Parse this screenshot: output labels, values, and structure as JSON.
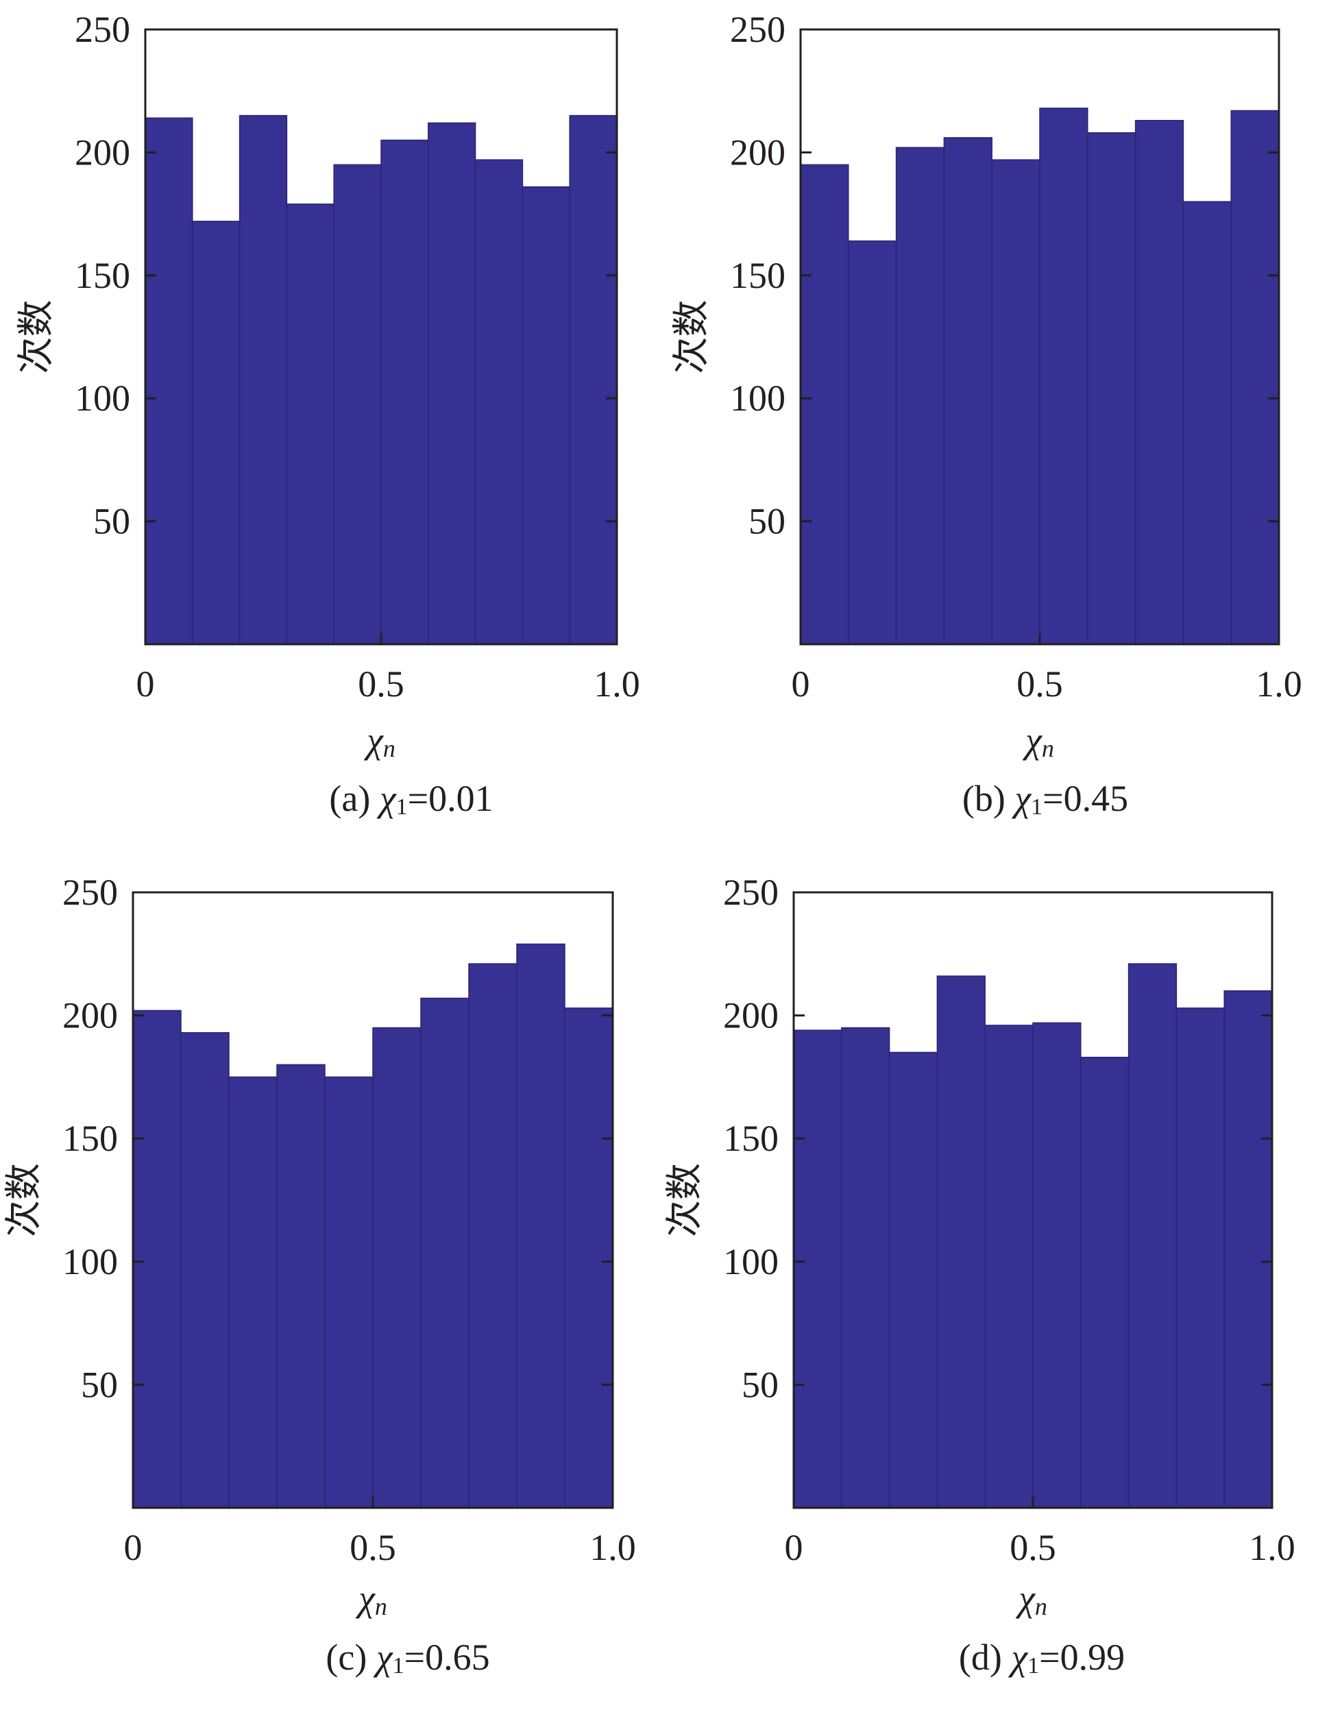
{
  "chart_data": [
    {
      "type": "bar",
      "panel": "a",
      "caption": {
        "prefix": "(a) ",
        "symbol": "χ",
        "subscript": "1",
        "suffix": "=0.01"
      },
      "ylabel": "次数",
      "xlabel": {
        "symbol": "χ",
        "subscript": "n"
      },
      "bin_edges": [
        0,
        0.1,
        0.2,
        0.3,
        0.4,
        0.5,
        0.6,
        0.7,
        0.8,
        0.9,
        1.0
      ],
      "values": [
        214,
        172,
        215,
        179,
        195,
        205,
        212,
        197,
        186,
        215
      ],
      "xlim": [
        0,
        1.0
      ],
      "ylim": [
        0,
        250
      ],
      "yticks": [
        50,
        100,
        150,
        200,
        250
      ],
      "xticks": [
        0,
        0.5,
        1.0
      ],
      "xtick_labels": [
        "0",
        "0.5",
        "1.0"
      ],
      "ytick_labels": [
        "50",
        "100",
        "150",
        "200",
        "250"
      ]
    },
    {
      "type": "bar",
      "panel": "b",
      "caption": {
        "prefix": "(b) ",
        "symbol": "χ",
        "subscript": "1",
        "suffix": "=0.45"
      },
      "ylabel": "次数",
      "xlabel": {
        "symbol": "χ",
        "subscript": "n"
      },
      "bin_edges": [
        0,
        0.1,
        0.2,
        0.3,
        0.4,
        0.5,
        0.6,
        0.7,
        0.8,
        0.9,
        1.0
      ],
      "values": [
        195,
        164,
        202,
        206,
        197,
        218,
        208,
        213,
        180,
        217
      ],
      "xlim": [
        0,
        1.0
      ],
      "ylim": [
        0,
        250
      ],
      "yticks": [
        50,
        100,
        150,
        200,
        250
      ],
      "xticks": [
        0,
        0.5,
        1.0
      ],
      "xtick_labels": [
        "0",
        "0.5",
        "1.0"
      ],
      "ytick_labels": [
        "50",
        "100",
        "150",
        "200",
        "250"
      ]
    },
    {
      "type": "bar",
      "panel": "c",
      "caption": {
        "prefix": "(c) ",
        "symbol": "χ",
        "subscript": "1",
        "suffix": "=0.65"
      },
      "ylabel": "次数",
      "xlabel": {
        "symbol": "χ",
        "subscript": "n"
      },
      "bin_edges": [
        0,
        0.1,
        0.2,
        0.3,
        0.4,
        0.5,
        0.6,
        0.7,
        0.8,
        0.9,
        1.0
      ],
      "values": [
        202,
        193,
        175,
        180,
        175,
        195,
        207,
        221,
        229,
        203
      ],
      "xlim": [
        0,
        1.0
      ],
      "ylim": [
        0,
        250
      ],
      "yticks": [
        50,
        100,
        150,
        200,
        250
      ],
      "xticks": [
        0,
        0.5,
        1.0
      ],
      "xtick_labels": [
        "0",
        "0.5",
        "1.0"
      ],
      "ytick_labels": [
        "50",
        "100",
        "150",
        "200",
        "250"
      ]
    },
    {
      "type": "bar",
      "panel": "d",
      "caption": {
        "prefix": "(d) ",
        "symbol": "χ",
        "subscript": "1",
        "suffix": "=0.99"
      },
      "ylabel": "次数",
      "xlabel": {
        "symbol": "χ",
        "subscript": "n"
      },
      "bin_edges": [
        0,
        0.1,
        0.2,
        0.3,
        0.4,
        0.5,
        0.6,
        0.7,
        0.8,
        0.9,
        1.0
      ],
      "values": [
        194,
        195,
        185,
        216,
        196,
        197,
        183,
        221,
        203,
        210
      ],
      "xlim": [
        0,
        1.0
      ],
      "ylim": [
        0,
        250
      ],
      "yticks": [
        50,
        100,
        150,
        200,
        250
      ],
      "xticks": [
        0,
        0.5,
        1.0
      ],
      "xtick_labels": [
        "0",
        "0.5",
        "1.0"
      ],
      "ytick_labels": [
        "50",
        "100",
        "150",
        "200",
        "250"
      ]
    }
  ],
  "colors": {
    "bar_fill": "#363192",
    "bar_edge": "#2a2670",
    "axis": "#231f20"
  }
}
